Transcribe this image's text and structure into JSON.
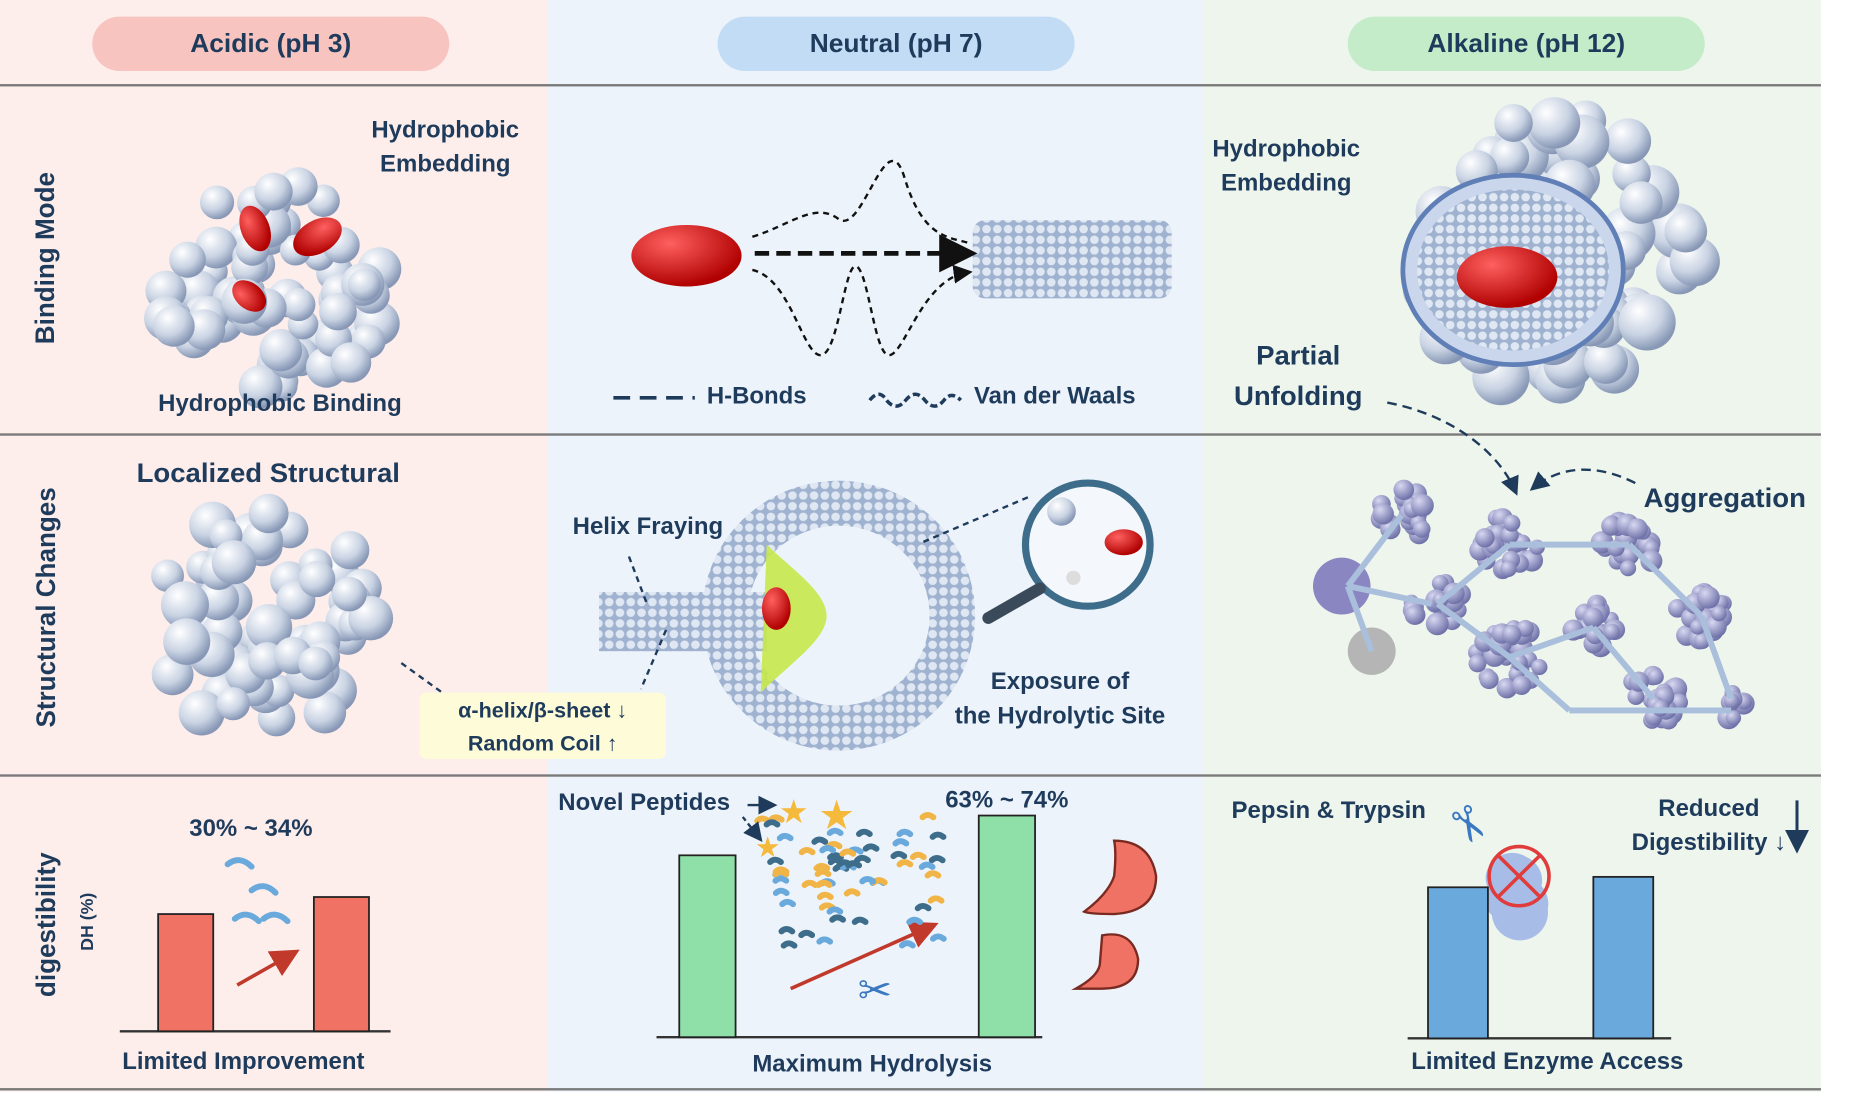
{
  "columns": [
    {
      "label": "Acidic (pH 3)",
      "pill_color": "#f8c4c0",
      "bg": "#fdeeeb"
    },
    {
      "label": "Neutral (pH 7)",
      "pill_color": "#c3dcf5",
      "bg": "#edf3fa"
    },
    {
      "label": "Alkaline (pH 12)",
      "pill_color": "#c4ecc9",
      "bg": "#edf5ec"
    }
  ],
  "rows": {
    "binding": "Binding Mode",
    "structural": "Structural Changes",
    "digestibility": "digestibility",
    "dh_axis": "DH (%)"
  },
  "binding": {
    "acidic": {
      "embedding": "Hydrophobic\nEmbedding",
      "binding": "Hydrophobic Binding"
    },
    "neutral": {
      "legend_hbonds": "H-Bonds",
      "legend_vdw": "Van der Waals"
    },
    "alkaline": {
      "embedding": "Hydrophobic\nEmbedding",
      "unfolding": "Partial\nUnfolding"
    }
  },
  "structural": {
    "acidic": {
      "title": "Localized Structural",
      "note_line1": "α-helix/β-sheet ↓",
      "note_line2": "Random Coil ↑"
    },
    "neutral": {
      "fraying": "Helix Fraying",
      "exposure": "Exposure of\nthe Hydrolytic Site"
    },
    "alkaline": {
      "aggregation": "Aggregation"
    }
  },
  "digestibility": {
    "acidic": {
      "range": "30% ~ 34%",
      "caption": "Limited Improvement",
      "bar_color": "#f07265",
      "bars": [
        0.55,
        0.63
      ]
    },
    "neutral": {
      "peptides": "Novel Peptides",
      "range": "63% ~ 74%",
      "caption": "Maximum Hydrolysis",
      "bar_color": "#8fe0a8",
      "bars": [
        0.64,
        0.78
      ]
    },
    "alkaline": {
      "enzymes": "Pepsin & Trypsin",
      "reduced": "Reduced\nDigestibility ↓",
      "caption": "Limited Enzyme Access",
      "bar_color": "#6aa9dc",
      "bars": [
        0.58,
        0.62
      ]
    }
  },
  "colors": {
    "text": "#1f3b5c",
    "ligand": "#e01010",
    "divider": "#7a7a7a"
  }
}
